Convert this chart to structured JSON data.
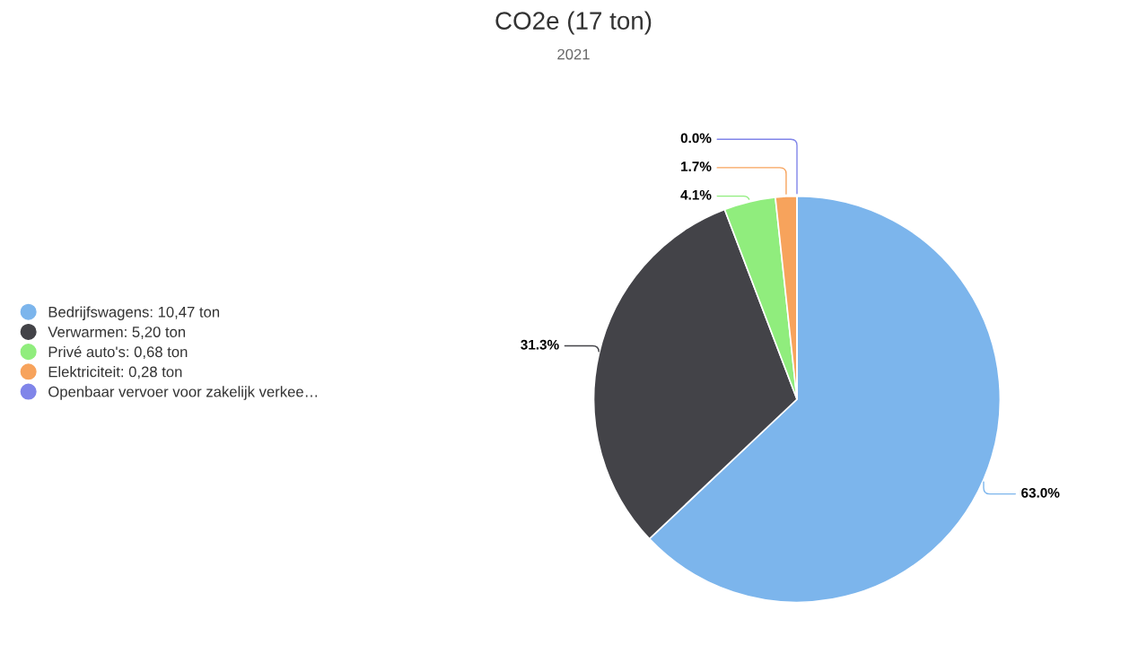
{
  "chart_data": {
    "type": "pie",
    "title": "CO2e (17 ton)",
    "subtitle": "2021",
    "categories": [
      "Bedrijfswagens: 10,47 ton",
      "Verwarmen: 5,20 ton",
      "Privé auto's: 0,68 ton",
      "Elektriciteit: 0,28 ton",
      "Openbaar vervoer voor zakelijk verkee…"
    ],
    "values": [
      63.0,
      31.3,
      4.1,
      1.7,
      0.0
    ],
    "colors": [
      "#7cb5ec",
      "#434348",
      "#90ed7d",
      "#f7a35c",
      "#8085e9"
    ],
    "value_labels": [
      "63.0%",
      "31.3%",
      "4.1%",
      "1.7%",
      "0.0%"
    ],
    "legend": "left"
  }
}
